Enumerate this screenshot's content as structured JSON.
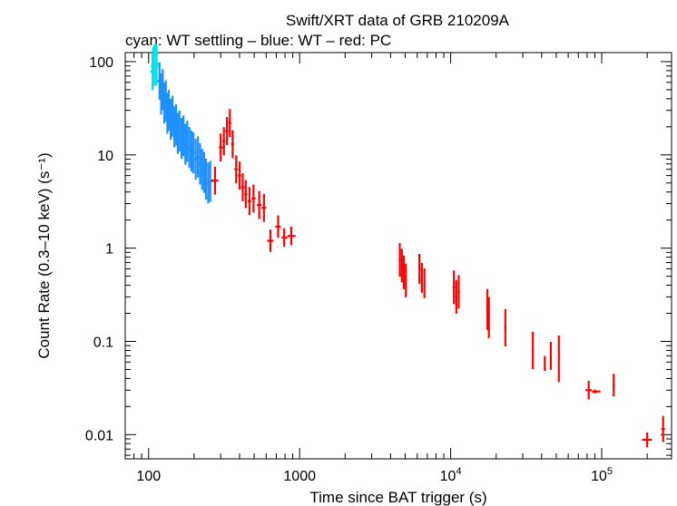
{
  "chart_data": {
    "type": "scatter",
    "title": "Swift/XRT data of GRB 210209A",
    "subtitle": "cyan: WT settling – blue: WT – red: PC",
    "xlabel": "Time since BAT trigger (s)",
    "ylabel": "Count Rate (0.3–10 keV) (s⁻¹)",
    "xscale": "log",
    "yscale": "log",
    "xlim": [
      70,
      290000
    ],
    "ylim": [
      0.0055,
      125
    ],
    "x_ticks": [
      {
        "value": 100,
        "base": "100",
        "exp": ""
      },
      {
        "value": 1000,
        "base": "1000",
        "exp": ""
      },
      {
        "value": 10000,
        "base": "10",
        "exp": "4"
      },
      {
        "value": 100000,
        "base": "10",
        "exp": "5"
      }
    ],
    "y_ticks": [
      {
        "value": 100,
        "label": "100"
      },
      {
        "value": 10,
        "label": "10"
      },
      {
        "value": 1,
        "label": "1"
      },
      {
        "value": 0.1,
        "label": "0.1"
      },
      {
        "value": 0.01,
        "label": "0.01"
      }
    ],
    "series": [
      {
        "name": "WT settling",
        "color": "#00e5ee",
        "points": [
          [
            106,
            78,
            0.2
          ],
          [
            107,
            90,
            0.2
          ],
          [
            108,
            86,
            0.2
          ],
          [
            109,
            96,
            0.2
          ],
          [
            110,
            92,
            0.2
          ],
          [
            111,
            100,
            0.2
          ],
          [
            112,
            88,
            0.2
          ],
          [
            113,
            95,
            0.2
          ]
        ]
      },
      {
        "name": "WT",
        "color": "#1e90ff",
        "points": [
          [
            118,
            62,
            0.2
          ],
          [
            121,
            45,
            0.22
          ],
          [
            124,
            50,
            0.22
          ],
          [
            127,
            36,
            0.22
          ],
          [
            130,
            38,
            0.22
          ],
          [
            133,
            28,
            0.22
          ],
          [
            136,
            30,
            0.22
          ],
          [
            140,
            24,
            0.22
          ],
          [
            144,
            26,
            0.22
          ],
          [
            148,
            20,
            0.22
          ],
          [
            152,
            21,
            0.22
          ],
          [
            156,
            17,
            0.22
          ],
          [
            160,
            18,
            0.22
          ],
          [
            165,
            15,
            0.22
          ],
          [
            170,
            16,
            0.22
          ],
          [
            175,
            13,
            0.22
          ],
          [
            180,
            14,
            0.22
          ],
          [
            186,
            12,
            0.22
          ],
          [
            192,
            11,
            0.22
          ],
          [
            198,
            10.5,
            0.22
          ],
          [
            205,
            9,
            0.22
          ],
          [
            212,
            9.5,
            0.22
          ],
          [
            219,
            8,
            0.22
          ],
          [
            226,
            7,
            0.22
          ],
          [
            233,
            6.5,
            0.22
          ],
          [
            240,
            5.5,
            0.22
          ],
          [
            248,
            5,
            0.22
          ],
          [
            256,
            5.2,
            0.22
          ]
        ]
      },
      {
        "name": "PC",
        "color": "#ff0000",
        "points": [
          [
            275,
            5.3,
            0.15,
            260,
            290
          ],
          [
            300,
            12,
            0.15,
            292,
            310
          ],
          [
            315,
            14,
            0.15,
            308,
            322
          ],
          [
            330,
            18,
            0.15,
            322,
            338
          ],
          [
            345,
            22,
            0.15,
            338,
            352
          ],
          [
            360,
            13,
            0.15,
            352,
            368
          ],
          [
            380,
            7,
            0.15,
            370,
            390
          ],
          [
            400,
            6,
            0.15,
            390,
            410
          ],
          [
            420,
            4.5,
            0.15,
            410,
            430
          ],
          [
            440,
            3.8,
            0.15,
            430,
            450
          ],
          [
            465,
            3.2,
            0.15,
            452,
            478
          ],
          [
            495,
            3.4,
            0.15,
            480,
            510
          ],
          [
            540,
            2.9,
            0.15,
            520,
            560
          ],
          [
            580,
            2.7,
            0.15,
            560,
            600
          ],
          [
            640,
            1.2,
            0.12,
            610,
            670
          ],
          [
            720,
            1.7,
            0.12,
            690,
            750
          ],
          [
            790,
            1.3,
            0.1,
            760,
            830
          ],
          [
            880,
            1.35,
            0.1,
            830,
            940
          ],
          [
            4600,
            0.75,
            0.18,
            4520,
            4680
          ],
          [
            4750,
            0.65,
            0.18,
            4680,
            4820
          ],
          [
            4900,
            0.55,
            0.18,
            4820,
            4980
          ],
          [
            5050,
            0.45,
            0.18,
            4980,
            5120
          ],
          [
            6200,
            0.6,
            0.16,
            6100,
            6300
          ],
          [
            6450,
            0.48,
            0.16,
            6350,
            6550
          ],
          [
            6700,
            0.42,
            0.16,
            6600,
            6800
          ],
          [
            10500,
            0.38,
            0.18,
            10300,
            10700
          ],
          [
            10900,
            0.3,
            0.18,
            10700,
            11100
          ],
          [
            11300,
            0.34,
            0.18,
            11100,
            11500
          ],
          [
            17500,
            0.22,
            0.22,
            17200,
            17800
          ],
          [
            17900,
            0.18,
            0.22,
            17700,
            18100
          ],
          [
            23000,
            0.14,
            0.2,
            22600,
            23400
          ],
          [
            35000,
            0.08,
            0.2,
            34500,
            35500
          ],
          [
            42000,
            0.058,
            0.08,
            41500,
            42500
          ],
          [
            46000,
            0.07,
            0.15,
            45500,
            46500
          ],
          [
            52000,
            0.065,
            0.25,
            51500,
            52500
          ],
          [
            82000,
            0.03,
            0.1,
            78000,
            86000
          ],
          [
            90000,
            0.029,
            0.02,
            86000,
            98000
          ],
          [
            120000,
            0.034,
            0.12,
            118000,
            122000
          ],
          [
            200000,
            0.0088,
            0.08,
            185000,
            215000
          ],
          [
            255000,
            0.0115,
            0.14,
            248000,
            262000
          ]
        ]
      }
    ],
    "error_note": "points are [x, y, log10 half-error (y), optional x_lo, x_hi]"
  }
}
